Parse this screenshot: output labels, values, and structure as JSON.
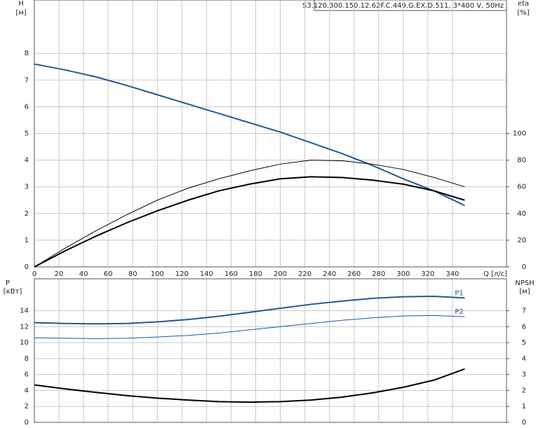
{
  "chart_data": [
    {
      "type": "line",
      "title": "S3.120.300.150.12.62F.C.449.G.EX.D.511, 3*400 V, 50Hz",
      "y_label": "H",
      "y_unit": "[м]",
      "y2_label": "eta",
      "y2_unit": "[%]",
      "x_label": "Q [л/с]",
      "x": [
        0,
        25,
        50,
        75,
        100,
        125,
        150,
        175,
        200,
        225,
        250,
        275,
        300,
        325,
        350
      ],
      "xlim": [
        0,
        384
      ],
      "xticks": [
        0,
        20,
        40,
        60,
        80,
        100,
        120,
        140,
        160,
        180,
        200,
        220,
        240,
        260,
        280,
        300,
        320,
        340
      ],
      "show_xtick_labels": true,
      "ylim": [
        0,
        10
      ],
      "yticks": [
        0,
        1,
        2,
        3,
        4,
        5,
        6,
        7,
        8
      ],
      "y2lim": [
        0,
        200
      ],
      "y2ticks": [
        0,
        20,
        40,
        60,
        80,
        100
      ],
      "grid": true,
      "series": [
        {
          "color": "#1f5a96",
          "line_width": 2,
          "values": [
            7.6,
            7.38,
            7.12,
            6.8,
            6.45,
            6.1,
            5.75,
            5.4,
            5.05,
            4.65,
            4.25,
            3.8,
            3.3,
            2.85,
            2.3
          ]
        },
        {
          "color": "#000000",
          "line_width": 1,
          "axis": "y2",
          "values": [
            0,
            14,
            27,
            39,
            50,
            59,
            66,
            72,
            77,
            80,
            79.5,
            77,
            73,
            67,
            60
          ]
        },
        {
          "color": "#000000",
          "line_width": 2,
          "axis": "y2",
          "values": [
            0,
            12,
            23,
            33,
            42,
            50,
            57,
            62,
            66,
            67.5,
            67,
            65,
            62,
            57,
            50
          ]
        }
      ]
    },
    {
      "type": "line",
      "y_label": "P",
      "y_unit": "[кВт]",
      "y2_label": "NPSH",
      "y2_unit": "[м]",
      "x": [
        0,
        25,
        50,
        75,
        100,
        125,
        150,
        175,
        200,
        225,
        250,
        275,
        300,
        325,
        350
      ],
      "xlim": [
        0,
        384
      ],
      "xticks": [
        0,
        20,
        40,
        60,
        80,
        100,
        120,
        140,
        160,
        180,
        200,
        220,
        240,
        260,
        280,
        300,
        320,
        340
      ],
      "show_xtick_labels": false,
      "ylim": [
        0,
        18
      ],
      "yticks": [
        0,
        2,
        4,
        6,
        8,
        10,
        12,
        14
      ],
      "y2lim": [
        0,
        9
      ],
      "y2ticks": [
        0,
        1,
        2,
        3,
        4,
        5,
        6,
        7
      ],
      "grid": true,
      "series": [
        {
          "name": "P1",
          "color": "#1f5a96",
          "line_width": 2,
          "values": [
            12.5,
            12.4,
            12.35,
            12.4,
            12.6,
            12.9,
            13.3,
            13.8,
            14.3,
            14.8,
            15.2,
            15.55,
            15.75,
            15.8,
            15.6
          ]
        },
        {
          "name": "P2",
          "color": "#1f5a96",
          "line_width": 1,
          "values": [
            10.6,
            10.55,
            10.5,
            10.55,
            10.7,
            10.9,
            11.2,
            11.6,
            12.0,
            12.4,
            12.8,
            13.1,
            13.35,
            13.4,
            13.25
          ]
        },
        {
          "color": "#000000",
          "line_width": 2,
          "axis": "y2",
          "values": [
            2.35,
            2.1,
            1.88,
            1.68,
            1.52,
            1.4,
            1.3,
            1.27,
            1.3,
            1.4,
            1.58,
            1.85,
            2.2,
            2.65,
            3.35
          ]
        }
      ]
    }
  ]
}
